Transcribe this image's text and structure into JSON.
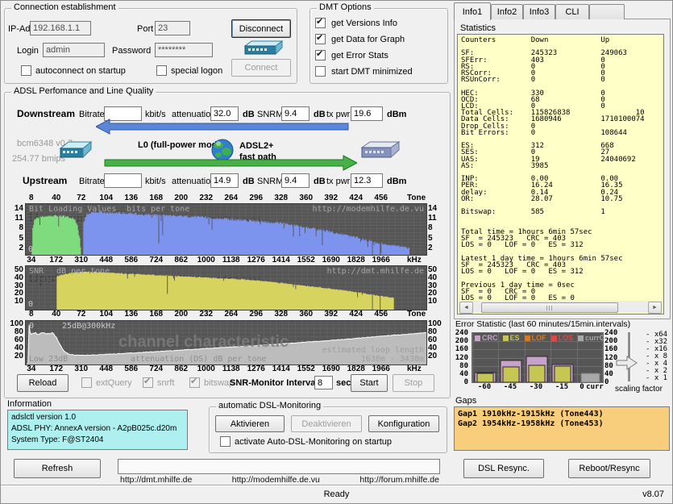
{
  "window": {
    "status": "Ready",
    "version": "v8.07"
  },
  "connection": {
    "label": "Connection establishment",
    "ip_label": "IP-Add.",
    "ip": "192.168.1.1",
    "port_label": "Port",
    "port": "23",
    "login_label": "Login",
    "login": "admin",
    "password_label": "Password",
    "password": "********",
    "disconnect": "Disconnect",
    "connect": "Connect",
    "autoconnect": "autoconnect on startup",
    "special_logon": "special logon"
  },
  "dmt_options": {
    "label": "DMT Options",
    "items": [
      {
        "label": "get Versions Info",
        "checked": true
      },
      {
        "label": "get Data for Graph",
        "checked": true
      },
      {
        "label": "get Error Stats",
        "checked": true
      },
      {
        "label": "start DMT minimized",
        "checked": false
      }
    ]
  },
  "tabs": [
    {
      "label": "Info1",
      "active": true
    },
    {
      "label": "Info2",
      "active": false
    },
    {
      "label": "Info3",
      "active": false
    },
    {
      "label": "CLI",
      "active": false
    },
    {
      "label": "",
      "active": false
    }
  ],
  "statistics": {
    "label": "Statistics",
    "lines": [
      "Counters        Down            Up",
      "",
      "SF:             245323          249063",
      "SFErr:          403             0",
      "RS:             0               0",
      "RSCorr:         0               0",
      "RSUnCorr:       0               0",
      "",
      "HEC:            330             0",
      "OCD:            68              0",
      "LCD:            0               0",
      "Total Cells:    115826838               10",
      "Data Cells:     1680946         1710100074",
      "Drop Cells:     0",
      "Bit Errors:     0               108644",
      "",
      "ES:             312             668",
      "SES:            0               27",
      "UAS:            19              24040692",
      "AS:             3985",
      "",
      "INP:            0.00            0.00",
      "PER:            16.24           16.35",
      "delay:          0.14            0.24",
      "OR:             28.07           10.75",
      "",
      "Bitswap:        585             1",
      "",
      "",
      "Total time = 1hours 6min 57sec",
      "SF  = 245323   CRC = 403",
      "LOS = 0   LOF = 0   ES = 312",
      "",
      "Latest 1 day time = 1hours 6min 57sec",
      "SF  = 245323   CRC = 403",
      "LOS = 0   LOF = 0   ES = 312",
      "",
      "Previous 1 day time = 0sec",
      "SF  = 0   CRC = 0",
      "LOS = 0   LOF = 0   ES = 0"
    ]
  },
  "adsl": {
    "label": "ADSL Perfomance and Line Quality",
    "downstream": {
      "name": "Downstream",
      "bitrate_label": "Bitrate",
      "bitrate": "",
      "unit_kbit": "kbit/s",
      "attenuation_label": "attenuation",
      "attenuation": "32.0",
      "unit_db1": "dB",
      "snrm_label": "SNRM",
      "snrm": "9.4",
      "unit_db2": "dB",
      "txpwr_label": "tx pwr",
      "txpwr": "19.6",
      "unit_dbm": "dBm"
    },
    "upstream": {
      "name": "Upstream",
      "bitrate_label": "Bitrate",
      "bitrate": "",
      "unit_kbit": "kbit/s",
      "attenuation_label": "attenuation",
      "attenuation": "14.9",
      "unit_db1": "dB",
      "snrm_label": "SNRM",
      "snrm": "9.4",
      "unit_db2": "dB",
      "txpwr_label": "tx pwr",
      "txpwr": "12.3",
      "unit_dbm": "dBm"
    },
    "modem": {
      "chip": "bcm6348 v0.7",
      "bmips": "254.77 bmips"
    },
    "link": {
      "mode": "L0 (full-power mode)",
      "standard": "ADSL2+",
      "path": "fast path"
    }
  },
  "reload_row": {
    "reload": "Reload",
    "extquery": "extQuery",
    "snrft": "snrft",
    "bitswap": "bitswap",
    "interval_label": "SNR-Monitor Interval:",
    "interval": "8",
    "sec": "sec",
    "start": "Start",
    "stop": "Stop"
  },
  "information": {
    "label": "Information",
    "lines": [
      "adslctl version 1.0",
      "ADSL PHY: AnnexA version - A2pB025c.d20m",
      "System Type: F@ST2404"
    ]
  },
  "monitoring": {
    "label": "automatic DSL-Monitoring",
    "aktivieren": "Aktivieren",
    "deaktivieren": "Deaktivieren",
    "konfiguration": "Konfiguration",
    "startup": "activate Auto-DSL-Monitoring on startup"
  },
  "error_stat": {
    "title": "Error Statistic (last 60 minutes/15min.intervals)",
    "scaling_label": "scaling factor",
    "scale_steps": [
      "x64",
      "x32",
      "x16",
      "x 8",
      "x 4",
      "x 2",
      "x 1"
    ],
    "active_scale": "x 4"
  },
  "gaps": {
    "label": "Gaps",
    "lines": [
      "Gap1 1910kHz-1915kHz (Tone443)",
      "Gap2 1954kHz-1958kHz (Tone453)"
    ]
  },
  "footer": {
    "refresh": "Refresh",
    "links": [
      "http://dmt.mhilfe.de",
      "http://modemhilfe.de.vu",
      "http://forum.mhilfe.de"
    ],
    "dsl_resync": "DSL Resync.",
    "reboot": "Reboot/Resync"
  },
  "axes": {
    "zero": "0",
    "tone_ticks": [
      "8",
      "40",
      "72",
      "104",
      "136",
      "168",
      "200",
      "232",
      "264",
      "296",
      "328",
      "360",
      "392",
      "424",
      "456"
    ],
    "tone_unit": "Tone",
    "khz_ticks": [
      "34",
      "172",
      "310",
      "448",
      "586",
      "724",
      "862",
      "1000",
      "1138",
      "1276",
      "1414",
      "1552",
      "1690",
      "1828",
      "1966"
    ],
    "khz_unit": "kHz"
  },
  "chart_data": [
    {
      "id": "bitload",
      "type": "bar",
      "title": "Bit Loading Values",
      "units": "bits per tone",
      "url": "http://modemhilfe.de.vu",
      "watermarks": [
        "Upstream",
        "Downstream"
      ],
      "ylim": [
        0,
        15
      ],
      "yticks": [
        2,
        5,
        8,
        11,
        14
      ],
      "grid_step": 1,
      "jitter": 0.7,
      "dip_chance": 0.04,
      "dip_depth": 4.5,
      "gap_tones": [
        443,
        453
      ],
      "dips": {
        "170": 3.5,
        "175": 6
      },
      "series": [
        {
          "name": "Upstream",
          "color": "#7edc7e",
          "envelope": [
            [
              8,
              2
            ],
            [
              9,
              8
            ],
            [
              11,
              10.5
            ],
            [
              14,
              11.5
            ],
            [
              30,
              12
            ],
            [
              45,
              11.8
            ],
            [
              55,
              11.5
            ],
            [
              62,
              11
            ],
            [
              66,
              9
            ],
            [
              69,
              5
            ],
            [
              70,
              2
            ]
          ]
        },
        {
          "name": "Downstream",
          "color": "#7d94ee",
          "envelope": [
            [
              74,
              10
            ],
            [
              78,
              12.5
            ],
            [
              90,
              13
            ],
            [
              120,
              12.8
            ],
            [
              160,
              12.2
            ],
            [
              200,
              11.8
            ],
            [
              240,
              11.2
            ],
            [
              256,
              11
            ],
            [
              280,
              10.5
            ],
            [
              310,
              10
            ],
            [
              330,
              9.5
            ],
            [
              355,
              8.5
            ],
            [
              380,
              7.5
            ],
            [
              400,
              6.5
            ],
            [
              418,
              5.5
            ],
            [
              435,
              4.5
            ],
            [
              452,
              3.5
            ],
            [
              468,
              3
            ],
            [
              480,
              2.5
            ],
            [
              490,
              2
            ]
          ]
        }
      ]
    },
    {
      "id": "snr",
      "type": "bar",
      "title": "SNR",
      "units": "dB per tone",
      "url": "http://dmt.mhilfe.de",
      "watermarks": [
        "Upstream",
        "Downstream"
      ],
      "ylim": [
        0,
        55
      ],
      "yticks": [
        10,
        20,
        30,
        40,
        50
      ],
      "grid_step": 5,
      "jitter": 1.2,
      "dip_chance": 0.025,
      "dip_depth": 7,
      "gap_tones": [
        443,
        453
      ],
      "dips": {
        "181": 20
      },
      "series": [
        {
          "name": "SNR",
          "color": "#d6d45e",
          "envelope": [
            [
              40,
              42
            ],
            [
              50,
              45
            ],
            [
              65,
              47.5
            ],
            [
              85,
              48
            ],
            [
              110,
              46.5
            ],
            [
              150,
              44.5
            ],
            [
              190,
              42.5
            ],
            [
              230,
              40.5
            ],
            [
              265,
              39
            ],
            [
              295,
              37
            ],
            [
              325,
              34
            ],
            [
              355,
              30.5
            ],
            [
              382,
              27.5
            ],
            [
              405,
              24.5
            ],
            [
              428,
              21.5
            ],
            [
              445,
              18.5
            ],
            [
              458,
              16.5
            ],
            [
              470,
              15
            ]
          ]
        }
      ]
    },
    {
      "id": "attenuation",
      "type": "area",
      "note": "25dB@300kHz",
      "low_label": "Low 23dB",
      "caption": "attenuation (DS)  dB per tone",
      "loop_label": "estimated loop length",
      "loop_value": "1638m - 3438m",
      "watermark": "channel characteristic",
      "ylim": [
        0,
        108
      ],
      "yticks": [
        20,
        40,
        60,
        80,
        100
      ],
      "grid_step": 10,
      "x_khz_max": 2208,
      "fill": "#bcbcbc",
      "envelope": [
        [
          12,
          4
        ],
        [
          18,
          96
        ],
        [
          26,
          74
        ],
        [
          45,
          78
        ],
        [
          70,
          76
        ],
        [
          100,
          78
        ],
        [
          130,
          76
        ],
        [
          150,
          78
        ],
        [
          165,
          70
        ],
        [
          185,
          52
        ],
        [
          210,
          33
        ],
        [
          240,
          25
        ],
        [
          280,
          23
        ],
        [
          350,
          23
        ],
        [
          450,
          25
        ],
        [
          600,
          29
        ],
        [
          800,
          34
        ],
        [
          1000,
          40
        ],
        [
          1200,
          45
        ],
        [
          1400,
          51
        ],
        [
          1600,
          57
        ],
        [
          1800,
          64
        ],
        [
          1950,
          70
        ],
        [
          2100,
          75
        ],
        [
          2208,
          79
        ]
      ]
    },
    {
      "id": "error_chart",
      "type": "bar",
      "categories": [
        "-60",
        "-45",
        "-30",
        "-15",
        "0",
        "curr"
      ],
      "ylim": [
        0,
        240
      ],
      "yticks": [
        0,
        40,
        80,
        120,
        160,
        200,
        240
      ],
      "series": [
        {
          "name": "CRC",
          "color": "#c9a2c9",
          "values": [
            47,
            105,
            127,
            86,
            0
          ]
        },
        {
          "name": "ES",
          "color": "#c6c654",
          "values": [
            42,
            73,
            81,
            80,
            0
          ]
        },
        {
          "name": "LOF",
          "color": "#e07818",
          "values": [
            0,
            0,
            0,
            0,
            0
          ]
        },
        {
          "name": "LOS",
          "color": "#e04848",
          "values": [
            0,
            0,
            0,
            0,
            0
          ]
        },
        {
          "name": "currCRC",
          "color": "#a8a8a8",
          "values": [
            0,
            0,
            0,
            0,
            45
          ]
        }
      ]
    }
  ]
}
